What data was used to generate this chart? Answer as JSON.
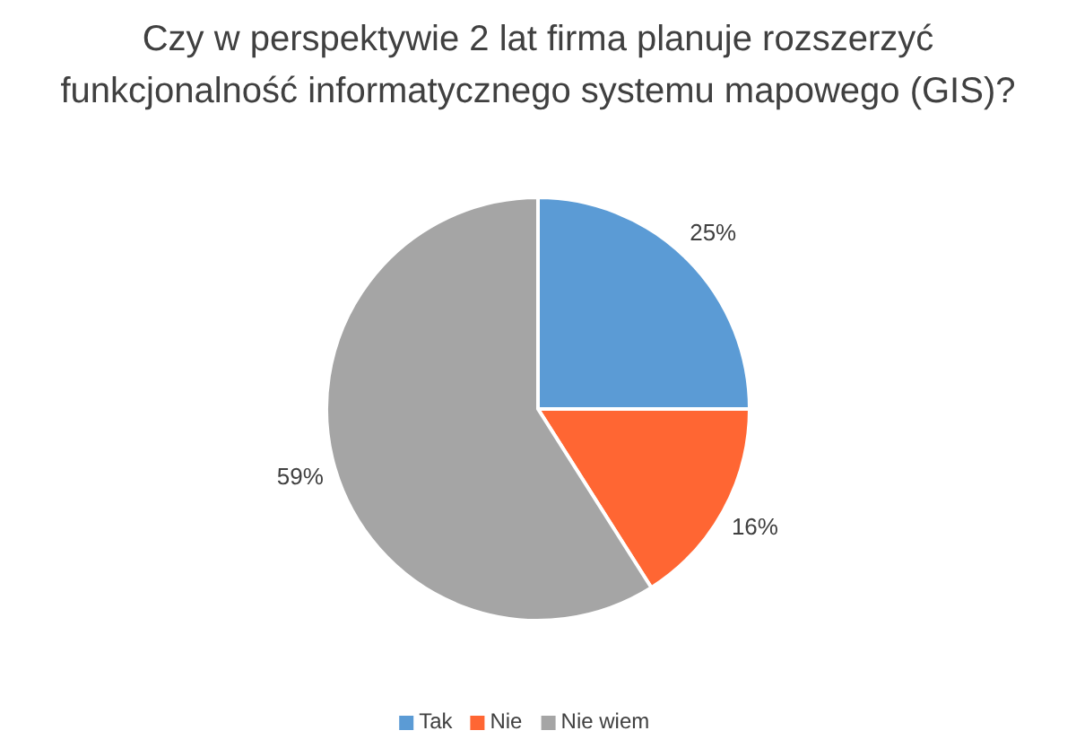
{
  "chart_data": {
    "type": "pie",
    "title": "Czy w perspektywie 2 lat firma planuje rozszerzyć funkcjonalność informatycznego systemu mapowego (GIS)?",
    "categories": [
      "Tak",
      "Nie",
      "Nie wiem"
    ],
    "values": [
      25,
      16,
      59
    ],
    "colors": [
      "#5b9bd5",
      "#ff6633",
      "#a5a5a5"
    ],
    "value_labels": [
      "25%",
      "16%",
      "59%"
    ],
    "legend": "bottom"
  }
}
